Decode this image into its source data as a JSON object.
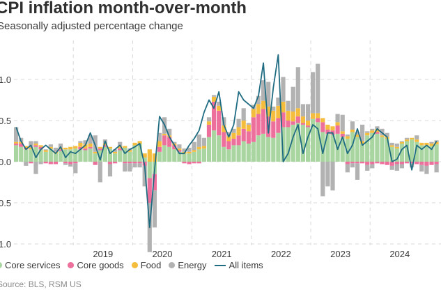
{
  "chart_data": {
    "type": "bar",
    "title": "CPI inflation month-over-month",
    "subtitle": "Seasonally adjusted percentage change",
    "source": "Source: BLS, RSM US",
    "ylim": [
      -1.0,
      1.3
    ],
    "yticks": [
      {
        "value": 1.0,
        "label": "1.0"
      },
      {
        "value": 0.5,
        "label": "0.5"
      },
      {
        "value": 0.0,
        "label": "0.0"
      },
      {
        "value": -0.5,
        "label": "0.5"
      },
      {
        "value": -1.0,
        "label": "1.0"
      }
    ],
    "xticks": [
      "2019",
      "2020",
      "2021",
      "2022",
      "2023",
      "2024"
    ],
    "start_month": "2018-01",
    "colors": {
      "core_services": "#a9d5a0",
      "core_goods": "#ec6f9c",
      "food": "#f5bd3d",
      "energy": "#b2b2b2",
      "all_items": "#1f6c82"
    },
    "legend": [
      {
        "key": "core_services",
        "label": "Core services",
        "shape": "dot"
      },
      {
        "key": "core_goods",
        "label": "Core goods",
        "shape": "dot"
      },
      {
        "key": "food",
        "label": "Food",
        "shape": "dot"
      },
      {
        "key": "energy",
        "label": "Energy",
        "shape": "dot"
      },
      {
        "key": "all_items",
        "label": "All items",
        "shape": "line"
      }
    ],
    "series": [
      {
        "key": "core_services",
        "name": "Core services",
        "values": [
          0.2,
          0.18,
          0.15,
          0.15,
          0.18,
          0.15,
          0.12,
          0.16,
          0.1,
          0.13,
          0.15,
          0.15,
          0.16,
          0.15,
          0.14,
          0.16,
          0.1,
          0.14,
          0.18,
          0.16,
          0.1,
          0.14,
          0.17,
          0.12,
          0.2,
          0.22,
          0.05,
          -0.2,
          -0.15,
          0.12,
          0.2,
          0.18,
          0.15,
          0.12,
          0.1,
          0.1,
          0.12,
          0.15,
          0.16,
          0.3,
          0.38,
          0.32,
          0.18,
          0.15,
          0.2,
          0.2,
          0.25,
          0.22,
          0.24,
          0.32,
          0.34,
          0.3,
          0.29,
          0.35,
          0.42,
          0.42,
          0.45,
          0.47,
          0.45,
          0.42,
          0.52,
          0.48,
          0.36,
          0.34,
          0.33,
          0.34,
          0.3,
          0.28,
          0.36,
          0.3,
          0.22,
          0.32,
          0.35,
          0.34,
          0.3,
          0.28,
          0.18,
          0.16,
          0.22,
          0.25,
          0.27,
          0.24,
          0.2,
          0.2,
          0.19,
          0.21
        ],
        "neg": [
          0,
          0,
          0,
          0,
          0,
          0,
          0,
          0,
          0,
          0,
          0,
          0,
          0,
          0,
          0,
          0,
          0,
          0,
          0,
          0,
          0,
          0,
          0,
          0,
          0,
          0,
          0,
          0,
          0,
          0,
          0,
          0,
          0,
          0,
          0,
          0,
          0,
          0,
          0,
          0,
          0,
          0,
          0,
          0,
          0,
          0,
          0,
          0,
          0,
          0,
          0,
          0,
          0,
          0,
          0,
          0,
          0,
          0,
          0,
          0,
          0,
          0,
          0,
          0,
          0,
          0,
          0,
          0,
          0,
          0,
          0,
          0,
          0,
          0,
          0,
          0,
          0,
          0,
          0,
          0,
          0,
          0,
          0,
          0,
          0,
          0
        ]
      },
      {
        "key": "core_goods",
        "name": "Core goods",
        "values": [
          0.02,
          0.04,
          0.02,
          0,
          0.02,
          0.03,
          0,
          0,
          0,
          0.02,
          0,
          0,
          0,
          0.03,
          0.02,
          0.02,
          0,
          0.02,
          0.02,
          0,
          0,
          0.02,
          0,
          0,
          0,
          0,
          0,
          0,
          0,
          0.06,
          0.12,
          0.12,
          0.05,
          0.02,
          0,
          0,
          0,
          0,
          0,
          0.15,
          0.35,
          0.3,
          0.18,
          0.1,
          0.08,
          0.12,
          0.15,
          0.15,
          0.3,
          0.26,
          0.3,
          0.25,
          0.2,
          0.18,
          0.18,
          0.08,
          0.04,
          0.08,
          0.02,
          0.02,
          0,
          0.05,
          0.12,
          0.05,
          0.05,
          0.1,
          0.04,
          0,
          0,
          0,
          0,
          0,
          0,
          0.02,
          0,
          0,
          0,
          0,
          0,
          0,
          0,
          0,
          0,
          0,
          0,
          0
        ],
        "neg": [
          0,
          0,
          0,
          -0.02,
          0,
          0,
          -0.02,
          -0.03,
          -0.03,
          0,
          -0.02,
          -0.03,
          -0.02,
          0,
          0,
          0,
          -0.04,
          0,
          0,
          -0.03,
          -0.02,
          0,
          -0.02,
          -0.02,
          -0.02,
          -0.02,
          -0.05,
          -0.3,
          -0.2,
          0,
          0,
          0,
          0,
          0,
          -0.02,
          -0.03,
          -0.02,
          -0.02,
          0,
          0,
          0,
          0,
          0,
          0,
          0,
          0,
          0,
          0,
          0,
          0,
          0,
          0,
          0,
          0,
          0,
          0,
          0,
          0,
          0,
          0,
          0,
          0,
          0,
          0,
          0,
          0,
          0,
          -0.03,
          -0.02,
          -0.02,
          -0.02,
          -0.04,
          -0.03,
          -0.02,
          -0.03,
          -0.04,
          -0.05,
          -0.03,
          -0.03,
          -0.02,
          -0.02,
          -0.03,
          -0.04,
          -0.05,
          -0.04,
          -0.03
        ]
      },
      {
        "key": "food",
        "name": "Food",
        "values": [
          0.02,
          0.02,
          0.02,
          0.02,
          0.02,
          0.02,
          0.02,
          0.02,
          0.02,
          0.02,
          0.02,
          0.03,
          0.03,
          0.05,
          0.05,
          0.04,
          0.02,
          0.02,
          0.02,
          0.02,
          0.02,
          0.03,
          0.02,
          0.02,
          0.03,
          0.03,
          0.05,
          0.15,
          0.1,
          0.07,
          0.02,
          0.02,
          0.02,
          0.02,
          0.02,
          0.02,
          0.02,
          0.03,
          0.03,
          0.04,
          0.06,
          0.06,
          0.08,
          0.06,
          0.07,
          0.1,
          0.1,
          0.08,
          0.1,
          0.12,
          0.1,
          0.12,
          0.13,
          0.15,
          0.13,
          0.12,
          0.12,
          0.1,
          0.08,
          0.06,
          0.07,
          0.06,
          0.05,
          0.06,
          0.05,
          0.04,
          0.03,
          0.03,
          0.03,
          0.03,
          0.03,
          0.03,
          0.03,
          0.04,
          0.02,
          0.02,
          0.02,
          0.02,
          0.02,
          0.02,
          0.02,
          0.03,
          0.03,
          0.03,
          0.03,
          0.03
        ],
        "neg": [
          0,
          0,
          0,
          0,
          0,
          0,
          0,
          0,
          0,
          0,
          0,
          0,
          0,
          0,
          0,
          0,
          0,
          0,
          0,
          0,
          0,
          0,
          0,
          0,
          0,
          0,
          0,
          0,
          0,
          0,
          0,
          0,
          0,
          0,
          0,
          0,
          0,
          0,
          0,
          0,
          0,
          0,
          0,
          0,
          0,
          0,
          0,
          0,
          0,
          0,
          0,
          0,
          0,
          0,
          0,
          0,
          0,
          0,
          0,
          0,
          0,
          0,
          0,
          0,
          0,
          0,
          0,
          0,
          0,
          0,
          0,
          0,
          0,
          0,
          0,
          0,
          0,
          0,
          0,
          0,
          0,
          0,
          0,
          0,
          0,
          0
        ]
      },
      {
        "key": "energy",
        "name": "Energy",
        "values": [
          0.18,
          0.05,
          0,
          0.08,
          0.03,
          0,
          0.01,
          0.03,
          0.05,
          0.05,
          0,
          0,
          0,
          0.02,
          0.05,
          0.1,
          0.2,
          0,
          0.05,
          0,
          0.03,
          0.05,
          0,
          0.02,
          0,
          0,
          0,
          0,
          0,
          0.1,
          0.2,
          0.08,
          0.02,
          0.05,
          0.04,
          0.05,
          0.1,
          0.15,
          0.1,
          0.05,
          0.02,
          0.05,
          0.1,
          0.05,
          0.05,
          0.1,
          0.15,
          0.02,
          0.05,
          0.1,
          0.25,
          0.3,
          0.05,
          0.1,
          0.3,
          0.12,
          0.3,
          0.5,
          0.15,
          0.2,
          0.5,
          0.6,
          0,
          0,
          0,
          0.1,
          0.2,
          0.02,
          0.1,
          0.03,
          0.2,
          0.02,
          0.02,
          0.03,
          0.08,
          0.05,
          0.03,
          0.04,
          0.01,
          0.02,
          0,
          0.05,
          0,
          0,
          0.02,
          0.02
        ],
        "neg": [
          0,
          0,
          -0.05,
          0,
          -0.15,
          -0.03,
          0,
          0,
          0,
          0,
          -0.02,
          -0.03,
          -0.12,
          0,
          0,
          0,
          0,
          -0.25,
          0,
          -0.15,
          0,
          0,
          -0.1,
          -0.1,
          -0.05,
          -0.05,
          -0.25,
          -0.6,
          -0.45,
          0,
          0,
          0,
          0,
          0,
          0,
          0,
          0,
          0,
          0,
          0,
          0,
          0,
          0,
          0,
          0,
          0,
          0,
          0,
          0,
          0,
          0,
          0,
          0,
          0,
          0,
          0,
          0,
          0,
          0,
          0,
          0,
          0,
          -0.42,
          -0.3,
          -0.35,
          0,
          0,
          -0.1,
          -0.05,
          -0.2,
          0,
          -0.07,
          -0.05,
          0,
          0,
          0,
          -0.05,
          -0.08,
          -0.05,
          0,
          -0.05,
          0,
          -0.08,
          -0.1,
          0,
          -0.1
        ]
      },
      {
        "key": "all_items",
        "name": "All items",
        "values": [
          0.42,
          0.25,
          0.15,
          0.2,
          0.05,
          0.15,
          0.2,
          0.15,
          0.1,
          0.18,
          0.05,
          0.12,
          0.1,
          0.15,
          0.2,
          0.35,
          0.2,
          0.02,
          0.25,
          0.1,
          0.15,
          0.2,
          0.1,
          0.15,
          0.18,
          0.22,
          -0.05,
          -0.8,
          -0.1,
          0.55,
          0.45,
          0.3,
          0.2,
          0.1,
          0.1,
          0.2,
          0.28,
          0.38,
          0.6,
          0.75,
          0.65,
          0.85,
          0.45,
          0.3,
          0.45,
          0.85,
          0.75,
          0.7,
          0.65,
          0.8,
          1.2,
          0.35,
          0.9,
          1.3,
          0,
          0.1,
          0.3,
          0.45,
          0.1,
          0.3,
          0.45,
          0.4,
          0.1,
          0.35,
          0.35,
          0.15,
          0.3,
          0.1,
          0.2,
          0.4,
          0.2,
          0.25,
          0.3,
          0.4,
          0.35,
          0.3,
          0,
          0.03,
          0.15,
          0.2,
          -0.1,
          0.2,
          0.15,
          0.2,
          0.15,
          0.25
        ]
      }
    ]
  }
}
